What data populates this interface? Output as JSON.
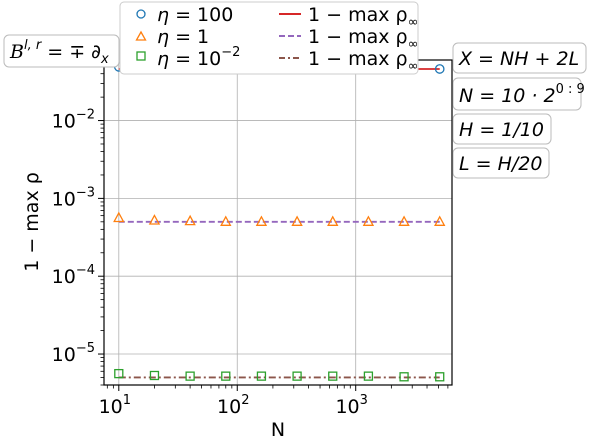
{
  "chart_data": {
    "type": "scatter",
    "x_scale": "log",
    "y_scale": "log",
    "xlim": [
      7.5,
      6500
    ],
    "ylim": [
      4e-06,
      0.06
    ],
    "xlabel": "N",
    "ylabel": "1 − max ρ",
    "grid": true,
    "legend_position": "top",
    "x_ticks": [
      {
        "value": 10,
        "base": "10",
        "exp": "1"
      },
      {
        "value": 100,
        "base": "10",
        "exp": "2"
      },
      {
        "value": 1000,
        "base": "10",
        "exp": "3"
      }
    ],
    "y_ticks": [
      {
        "value": 0.01,
        "base": "10",
        "exp": "−2"
      },
      {
        "value": 0.001,
        "base": "10",
        "exp": "−3"
      },
      {
        "value": 0.0001,
        "base": "10",
        "exp": "−4"
      },
      {
        "value": 1e-05,
        "base": "10",
        "exp": "−5"
      }
    ],
    "x": [
      10,
      20,
      40,
      80,
      160,
      320,
      640,
      1280,
      2560,
      5120
    ],
    "series": [
      {
        "name": "η = 100",
        "marker": "circle",
        "color": "#1f77b4",
        "values": [
          0.049,
          0.046,
          0.046,
          0.046,
          0.046,
          0.046,
          0.046,
          0.046,
          0.046,
          0.046
        ]
      },
      {
        "name": "η = 1",
        "marker": "triangle",
        "color": "#ff7f0e",
        "values": [
          0.00056,
          0.00052,
          0.00051,
          0.0005,
          0.0005,
          0.0005,
          0.0005,
          0.0005,
          0.0005,
          0.0005
        ]
      },
      {
        "name": "η = 10⁻²",
        "marker": "square",
        "color": "#2ca02c",
        "values": [
          5.6e-06,
          5.3e-06,
          5.2e-06,
          5.2e-06,
          5.2e-06,
          5.2e-06,
          5.2e-06,
          5.2e-06,
          5.1e-06,
          5.1e-06
        ]
      }
    ],
    "lines": [
      {
        "name": "1 − max ρ∞",
        "style": "solid",
        "color": "#d62728",
        "value": 0.046
      },
      {
        "name": "1 − max ρ∞",
        "style": "dashed",
        "color": "#9467bd",
        "value": 0.0005
      },
      {
        "name": "1 − max ρ∞",
        "style": "dashdot",
        "color": "#8c564b",
        "value": 5e-06
      }
    ]
  },
  "legend": {
    "markers": [
      {
        "prefix": "η = ",
        "text": "100"
      },
      {
        "prefix": "η = ",
        "text": "1"
      },
      {
        "prefix": "η = ",
        "text": "10",
        "sup": "−2"
      }
    ],
    "lines": [
      {
        "text": "1 − max ρ",
        "sub": "∞"
      },
      {
        "text": "1 − max ρ",
        "sub": "∞"
      },
      {
        "text": "1 − max ρ",
        "sub": "∞"
      }
    ]
  },
  "annotations": {
    "operator": {
      "symbol": "B",
      "sup": "l, r",
      "rest": " = ∓ ∂",
      "sub": "x"
    },
    "params": [
      {
        "text": "X = NH + 2L"
      },
      {
        "text": "N = 10 · 2",
        "sup": "0 : 9"
      },
      {
        "text": "H = 1/10"
      },
      {
        "text": "L = H/20"
      }
    ]
  }
}
